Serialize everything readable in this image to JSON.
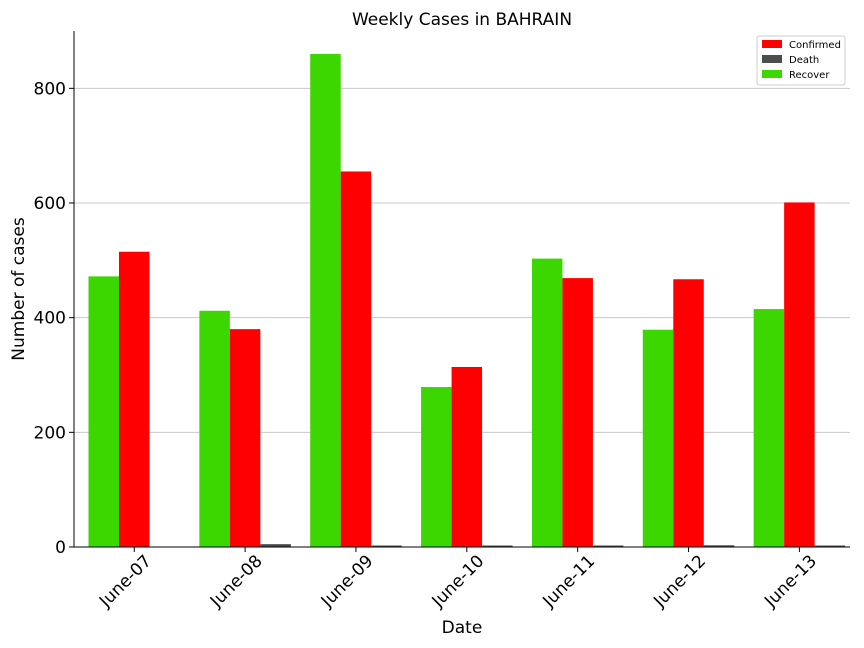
{
  "chart_data": {
    "type": "bar",
    "title": "Weekly Cases in BAHRAIN",
    "xlabel": "Date",
    "ylabel": "Number of cases",
    "categories": [
      "June-07",
      "June-08",
      "June-09",
      "June-10",
      "June-11",
      "June-12",
      "June-13"
    ],
    "series": [
      {
        "name": "Recover",
        "color": "#3cd600",
        "values": [
          472,
          412,
          860,
          279,
          503,
          379,
          415
        ]
      },
      {
        "name": "Confirmed",
        "color": "#ff0000",
        "values": [
          515,
          380,
          655,
          314,
          469,
          467,
          601
        ]
      },
      {
        "name": "Death",
        "color": "#4d4d4d",
        "values": [
          0,
          5,
          1,
          1,
          1,
          3,
          1
        ]
      }
    ],
    "legend_order": [
      "Confirmed",
      "Death",
      "Recover"
    ],
    "ylim": [
      0,
      900
    ],
    "yticks": [
      0,
      200,
      400,
      600,
      800
    ],
    "grid": "horizontal",
    "legend_position": "top-right"
  }
}
